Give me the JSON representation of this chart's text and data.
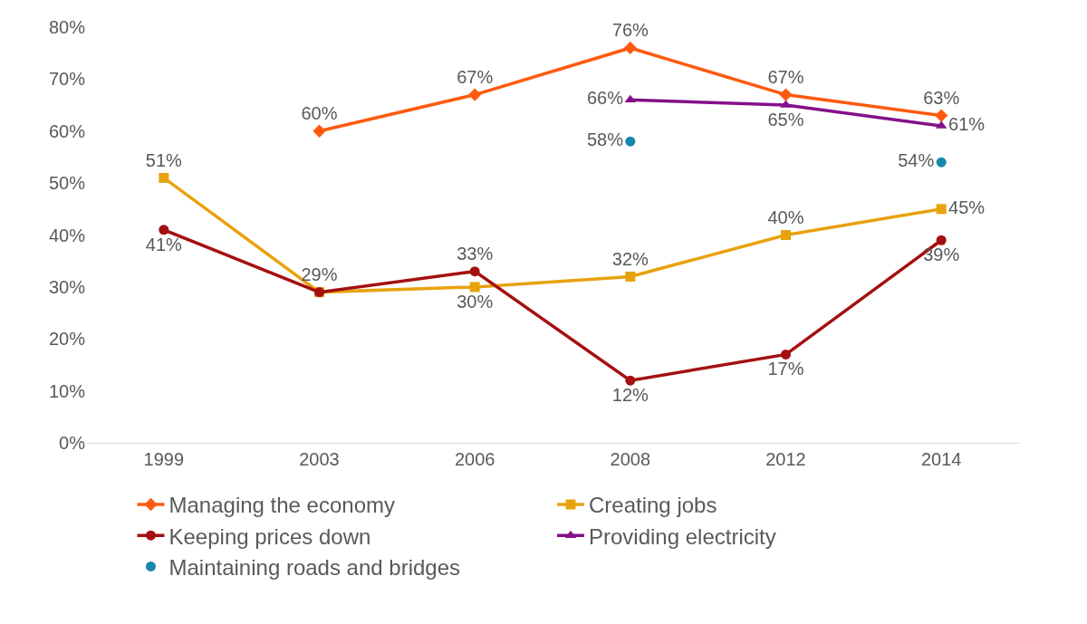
{
  "chart_data": {
    "type": "line",
    "categories": [
      "1999",
      "2003",
      "2006",
      "2008",
      "2012",
      "2014"
    ],
    "ylim": [
      0,
      80
    ],
    "yticks": [
      {
        "value": 0,
        "label": "0%"
      },
      {
        "value": 10,
        "label": "10%"
      },
      {
        "value": 20,
        "label": "20%"
      },
      {
        "value": 30,
        "label": "30%"
      },
      {
        "value": 40,
        "label": "40%"
      },
      {
        "value": 50,
        "label": "50%"
      },
      {
        "value": 60,
        "label": "60%"
      },
      {
        "value": 70,
        "label": "70%"
      },
      {
        "value": 80,
        "label": "80%"
      }
    ],
    "grid": false,
    "legend": "bottom",
    "line_style": "solid",
    "series": [
      {
        "name": "Managing the economy",
        "color": "#fe5a0f",
        "marker": "diamond",
        "values": [
          null,
          60,
          67,
          76,
          67,
          63
        ],
        "value_labels": [
          null,
          "60%",
          "67%",
          "76%",
          "67%",
          "63%"
        ]
      },
      {
        "name": "Creating jobs",
        "color": "#e8a20e",
        "marker": "square",
        "values": [
          51,
          29,
          30,
          32,
          40,
          45
        ],
        "value_labels": [
          "51%",
          "29%",
          "30%",
          "32%",
          "40%",
          "45%"
        ]
      },
      {
        "name": "Keeping prices down",
        "color": "#a50f0f",
        "marker": "circle",
        "values": [
          41,
          29,
          33,
          12,
          17,
          39
        ],
        "value_labels": [
          "41%",
          null,
          "33%",
          "12%",
          "17%",
          "39%"
        ]
      },
      {
        "name": "Providing electricity",
        "color": "#85108a",
        "marker": "triangle",
        "values": [
          null,
          null,
          null,
          66,
          65,
          61
        ],
        "value_labels": [
          null,
          null,
          null,
          "66%",
          "65%",
          "61%"
        ]
      },
      {
        "name": "Maintaining roads and bridges",
        "type": "scatter",
        "color": "#1787aa",
        "marker": "circle",
        "values": [
          null,
          null,
          null,
          58,
          null,
          54
        ],
        "value_labels": [
          null,
          null,
          null,
          "58%",
          null,
          "54%"
        ]
      }
    ]
  }
}
